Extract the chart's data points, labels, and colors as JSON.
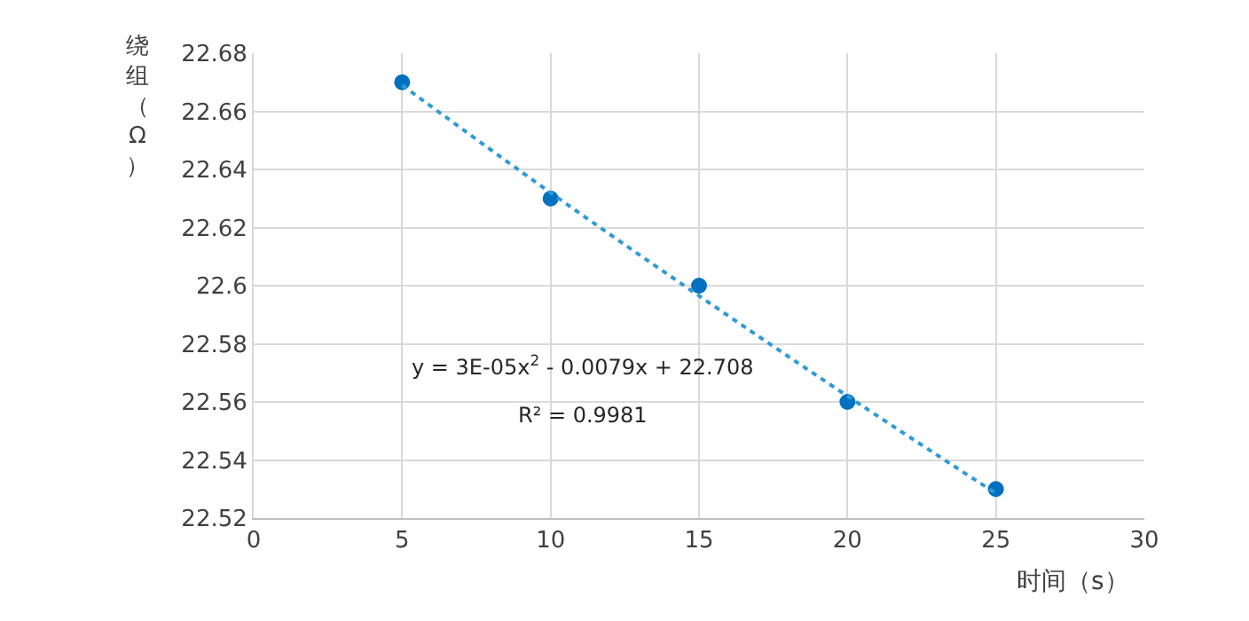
{
  "chart_data": {
    "type": "scatter",
    "xlabel": "时间（s）",
    "ylabel": "绕组（Ω）",
    "x": [
      5,
      10,
      15,
      20,
      25
    ],
    "series": [
      {
        "color": "#0070c0",
        "values": [
          22.67,
          22.63,
          22.6,
          22.56,
          22.53
        ],
        "marker": "circle"
      },
      {
        "type": "line",
        "color": "#2e9bd6",
        "x": [
          5,
          10,
          15,
          20,
          25
        ],
        "values": [
          22.669,
          22.632,
          22.5965,
          22.562,
          22.5285
        ],
        "marker": "none",
        "line_style": "dotted"
      }
    ],
    "xlim": [
      0,
      30
    ],
    "xticks": [
      0,
      5,
      10,
      15,
      20,
      25,
      30
    ],
    "ylim": [
      22.52,
      22.68
    ],
    "yticks": [
      22.52,
      22.54,
      22.56,
      22.58,
      22.6,
      22.62,
      22.64,
      22.66,
      22.68
    ],
    "grid": true,
    "annotations": [
      "y = 3E-05x$^{2}$ - 0.0079x + 22.708",
      "R² = 0.9981"
    ]
  }
}
